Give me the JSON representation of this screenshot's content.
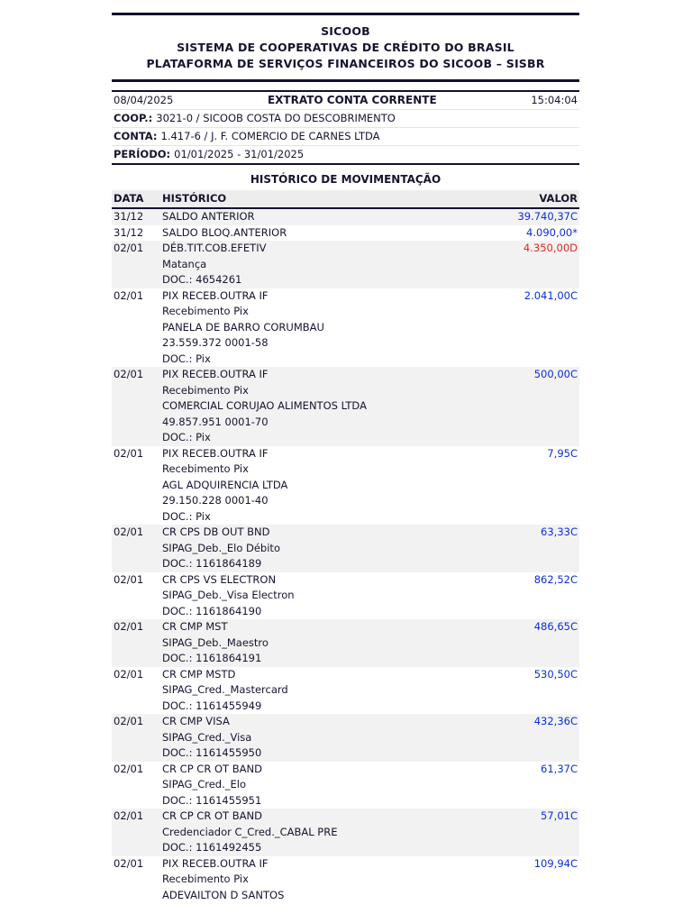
{
  "header": {
    "line1": "SICOOB",
    "line2": "SISTEMA DE COOPERATIVAS DE CRÉDITO DO BRASIL",
    "line3": "PLATAFORMA DE SERVIÇOS FINANCEIROS DO SICOOB – SISBR"
  },
  "meta": {
    "date": "08/04/2025",
    "title": "EXTRATO CONTA CORRENTE",
    "time": "15:04:04",
    "coop_label": "COOP.:",
    "coop_value": "3021-0 / SICOOB COSTA DO DESCOBRIMENTO",
    "conta_label": "CONTA:",
    "conta_value": "1.417-6 / J. F. COMERCIO DE CARNES LTDA",
    "periodo_label": "PERÍODO:",
    "periodo_value": "01/01/2025 - 31/01/2025"
  },
  "table": {
    "section_title": "HISTÓRICO DE MOVIMENTAÇÃO",
    "columns": [
      "DATA",
      "HISTÓRICO",
      "VALOR"
    ]
  },
  "colors": {
    "credit": "#0a2fd4",
    "blocked": "#0a2fd4",
    "debit": "#e02920",
    "text": "#15152e",
    "row_alt": "#f2f2f2"
  },
  "transactions": [
    {
      "date": "31/12",
      "lines": [
        "SALDO ANTERIOR"
      ],
      "value": "39.740,37C",
      "type": "credit"
    },
    {
      "date": "31/12",
      "lines": [
        "SALDO BLOQ.ANTERIOR"
      ],
      "value": "4.090,00*",
      "type": "blocked"
    },
    {
      "date": "02/01",
      "lines": [
        "DÉB.TIT.COB.EFETIV",
        "Matança",
        "DOC.: 4654261"
      ],
      "value": "4.350,00D",
      "type": "debit"
    },
    {
      "date": "02/01",
      "lines": [
        "PIX RECEB.OUTRA IF",
        "Recebimento Pix",
        "PANELA DE BARRO CORUMBAU",
        "23.559.372 0001-58",
        "DOC.: Pix"
      ],
      "value": "2.041,00C",
      "type": "credit"
    },
    {
      "date": "02/01",
      "lines": [
        "PIX RECEB.OUTRA IF",
        "Recebimento Pix",
        "COMERCIAL CORUJAO ALIMENTOS LTDA",
        "49.857.951 0001-70",
        "DOC.: Pix"
      ],
      "value": "500,00C",
      "type": "credit"
    },
    {
      "date": "02/01",
      "lines": [
        "PIX RECEB.OUTRA IF",
        "Recebimento Pix",
        "AGL ADQUIRENCIA LTDA",
        "29.150.228 0001-40",
        "DOC.: Pix"
      ],
      "value": "7,95C",
      "type": "credit"
    },
    {
      "date": "02/01",
      "lines": [
        "CR CPS DB OUT BND",
        "SIPAG_Deb._Elo Débito",
        "DOC.: 1161864189"
      ],
      "value": "63,33C",
      "type": "credit"
    },
    {
      "date": "02/01",
      "lines": [
        "CR CPS VS ELECTRON",
        "SIPAG_Deb._Visa Electron",
        "DOC.: 1161864190"
      ],
      "value": "862,52C",
      "type": "credit"
    },
    {
      "date": "02/01",
      "lines": [
        "CR CMP MST",
        "SIPAG_Deb._Maestro",
        "DOC.: 1161864191"
      ],
      "value": "486,65C",
      "type": "credit"
    },
    {
      "date": "02/01",
      "lines": [
        "CR CMP MSTD",
        "SIPAG_Cred._Mastercard",
        "DOC.: 1161455949"
      ],
      "value": "530,50C",
      "type": "credit"
    },
    {
      "date": "02/01",
      "lines": [
        "CR CMP VISA",
        "SIPAG_Cred._Visa",
        "DOC.: 1161455950"
      ],
      "value": "432,36C",
      "type": "credit"
    },
    {
      "date": "02/01",
      "lines": [
        "CR CP CR OT BAND",
        "SIPAG_Cred._Elo",
        "DOC.: 1161455951"
      ],
      "value": "61,37C",
      "type": "credit"
    },
    {
      "date": "02/01",
      "lines": [
        "CR CP CR OT BAND",
        "Credenciador C_Cred._CABAL PRE",
        "DOC.: 1161492455"
      ],
      "value": "57,01C",
      "type": "credit"
    },
    {
      "date": "02/01",
      "lines": [
        "PIX RECEB.OUTRA IF",
        "Recebimento Pix",
        "ADEVAILTON D SANTOS"
      ],
      "value": "109,94C",
      "type": "credit"
    }
  ]
}
